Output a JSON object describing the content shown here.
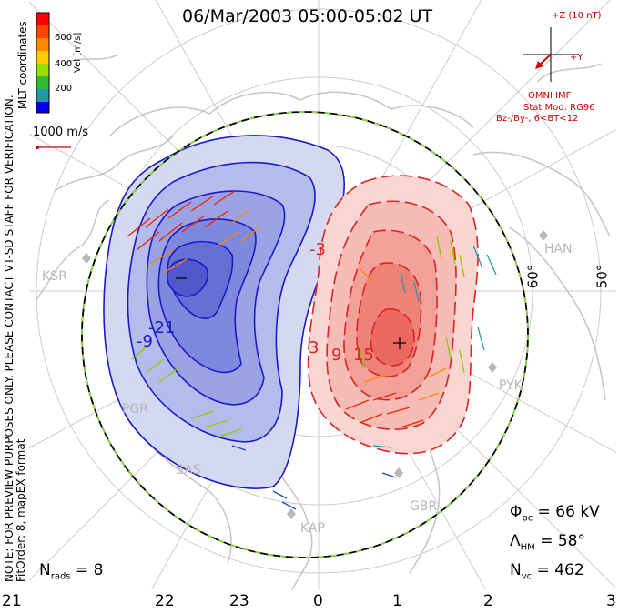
{
  "title": "06/Mar/2003 05:00-05:02 UT",
  "colorbar": {
    "labels": [
      "600",
      "400",
      "200"
    ],
    "unit": "Vel [m/s]",
    "colors": [
      "#ff0000",
      "#ff8800",
      "#ffcc00",
      "#99dd00",
      "#33bb33",
      "#2299aa",
      "#3355cc",
      "#0000ee"
    ]
  },
  "coords_label": "MLT coordinates",
  "velocity_legend": "1000 m/s",
  "side_notes": {
    "line1": "NOTE: FOR PREVIEW PURPOSES ONLY. PLEASE CONTACT VT-SD STAFF FOR VERIFICATION.",
    "line2": "FitOrder: 8, mapEX format"
  },
  "imf": {
    "z_label": "+Z (10 nT)",
    "y_label": "+Y",
    "source": "OMNI IMF",
    "model": "Stat Mod: RG96",
    "condition": "Bz-/By-, 6<BT<12"
  },
  "stats": {
    "nrads": "N",
    "nrads_sub": "rads",
    "nrads_val": "= 8",
    "phi": "Φ",
    "phi_sub": "pc",
    "phi_val": "= 66 kV",
    "lam": "Λ",
    "lam_sub": "HM",
    "lam_val": "= 58°",
    "nvc": "N",
    "nvc_sub": "vc",
    "nvc_val": "= 462"
  },
  "mlt_ticks": [
    "21",
    "22",
    "23",
    "0",
    "1",
    "2",
    "3"
  ],
  "lat_labels": [
    "60°",
    "50°"
  ],
  "stations": [
    "KSR",
    "HAN",
    "PYK",
    "PGR",
    "SAS",
    "KAP",
    "GBR"
  ],
  "contour_labels": [
    "-21",
    "-9",
    "-3",
    "3",
    "9",
    "15"
  ],
  "markers": {
    "min": "−",
    "max": "+"
  },
  "colors": {
    "positive": "#dd2222",
    "negative": "#1a1acc",
    "hmb": "#000000",
    "hmb_dash": "#88dd44",
    "grid": "#cccccc",
    "annotation": "#cc0000"
  }
}
